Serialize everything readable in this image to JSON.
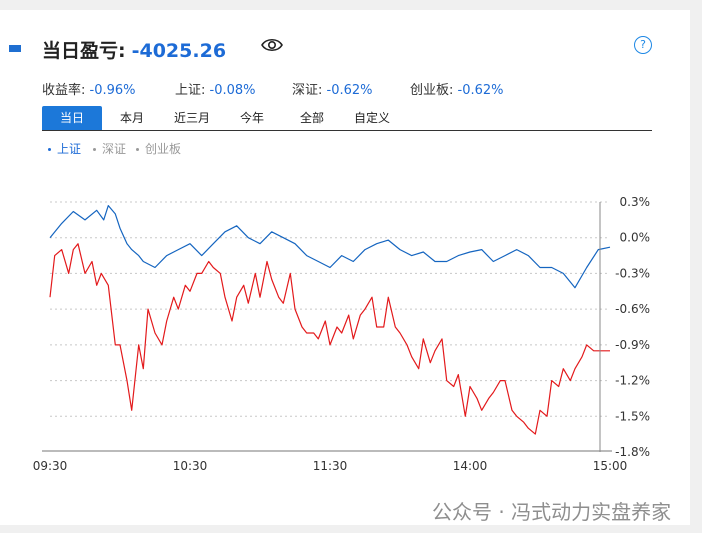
{
  "header": {
    "title": "当日盈亏:",
    "value": "-4025.26"
  },
  "stats": [
    {
      "label": "收益率:",
      "value": "-0.96%"
    },
    {
      "label": "上证:",
      "value": "-0.08%"
    },
    {
      "label": "深证:",
      "value": "-0.62%"
    },
    {
      "label": "创业板:",
      "value": "-0.62%"
    }
  ],
  "tabs": [
    "当日",
    "本月",
    "近三月",
    "今年",
    "全部",
    "自定义"
  ],
  "legend": [
    "上证",
    "深证",
    "创业板"
  ],
  "watermark": "公众号 · 冯式动力实盘养家",
  "chart_data": {
    "type": "line",
    "x_ticks": [
      "09:30",
      "10:30",
      "11:30",
      "14:00",
      "15:00"
    ],
    "y_ticks": [
      "0.3%",
      "0.0%",
      "-0.3%",
      "-0.6%",
      "-0.9%",
      "-1.2%",
      "-1.5%",
      "-1.8%"
    ],
    "ylim": [
      -1.8,
      0.3
    ],
    "series": [
      {
        "name": "上证",
        "color": "#1565c0",
        "x": [
          0,
          5,
          10,
          15,
          20,
          23,
          25,
          28,
          30,
          33,
          35,
          38,
          40,
          45,
          50,
          55,
          60,
          65,
          70,
          75,
          80,
          85,
          90,
          95,
          100,
          105,
          110,
          115,
          120,
          125,
          130,
          135,
          140,
          145,
          150,
          155,
          160,
          165,
          170,
          175,
          180,
          185,
          190,
          195,
          200,
          205,
          210,
          215,
          220,
          225,
          230,
          235,
          240
        ],
        "y": [
          0.0,
          0.12,
          0.22,
          0.15,
          0.23,
          0.15,
          0.27,
          0.2,
          0.08,
          -0.05,
          -0.1,
          -0.15,
          -0.2,
          -0.25,
          -0.15,
          -0.1,
          -0.05,
          -0.15,
          -0.05,
          0.05,
          0.1,
          0.0,
          -0.05,
          0.05,
          0.0,
          -0.05,
          -0.15,
          -0.2,
          -0.25,
          -0.15,
          -0.2,
          -0.1,
          -0.05,
          -0.02,
          -0.1,
          -0.15,
          -0.12,
          -0.2,
          -0.2,
          -0.15,
          -0.12,
          -0.1,
          -0.2,
          -0.15,
          -0.1,
          -0.15,
          -0.25,
          -0.25,
          -0.3,
          -0.42,
          -0.25,
          -0.1,
          -0.08
        ]
      },
      {
        "name": "收益率",
        "color": "#e31a1c",
        "x": [
          0,
          2,
          5,
          8,
          10,
          12,
          15,
          18,
          20,
          22,
          25,
          28,
          30,
          33,
          35,
          38,
          40,
          42,
          45,
          48,
          50,
          53,
          55,
          58,
          60,
          63,
          65,
          68,
          70,
          73,
          75,
          78,
          80,
          83,
          85,
          88,
          90,
          93,
          95,
          98,
          100,
          103,
          105,
          108,
          110,
          113,
          115,
          118,
          120,
          123,
          125,
          128,
          130,
          133,
          135,
          138,
          140,
          143,
          145,
          148,
          150,
          153,
          155,
          158,
          160,
          163,
          165,
          168,
          170,
          173,
          175,
          178,
          180,
          183,
          185,
          188,
          190,
          193,
          195,
          198,
          200,
          203,
          205,
          208,
          210,
          213,
          215,
          218,
          220,
          223,
          225,
          228,
          230,
          233,
          235,
          238,
          240
        ],
        "y": [
          -0.5,
          -0.15,
          -0.1,
          -0.3,
          -0.1,
          -0.05,
          -0.3,
          -0.2,
          -0.4,
          -0.3,
          -0.4,
          -0.9,
          -0.9,
          -1.2,
          -1.45,
          -0.9,
          -1.1,
          -0.6,
          -0.8,
          -0.9,
          -0.7,
          -0.5,
          -0.6,
          -0.4,
          -0.45,
          -0.3,
          -0.3,
          -0.2,
          -0.25,
          -0.3,
          -0.5,
          -0.7,
          -0.5,
          -0.4,
          -0.55,
          -0.3,
          -0.5,
          -0.2,
          -0.35,
          -0.5,
          -0.55,
          -0.3,
          -0.6,
          -0.75,
          -0.8,
          -0.8,
          -0.85,
          -0.7,
          -0.9,
          -0.75,
          -0.8,
          -0.65,
          -0.85,
          -0.65,
          -0.6,
          -0.5,
          -0.75,
          -0.75,
          -0.5,
          -0.75,
          -0.8,
          -0.9,
          -1.0,
          -1.1,
          -0.85,
          -1.05,
          -0.95,
          -0.85,
          -1.2,
          -1.25,
          -1.15,
          -1.5,
          -1.25,
          -1.35,
          -1.45,
          -1.35,
          -1.3,
          -1.2,
          -1.2,
          -1.45,
          -1.5,
          -1.55,
          -1.6,
          -1.65,
          -1.45,
          -1.5,
          -1.2,
          -1.25,
          -1.1,
          -1.2,
          -1.1,
          -1.0,
          -0.9,
          -0.95,
          -0.95,
          -0.95,
          -0.95
        ]
      }
    ]
  }
}
